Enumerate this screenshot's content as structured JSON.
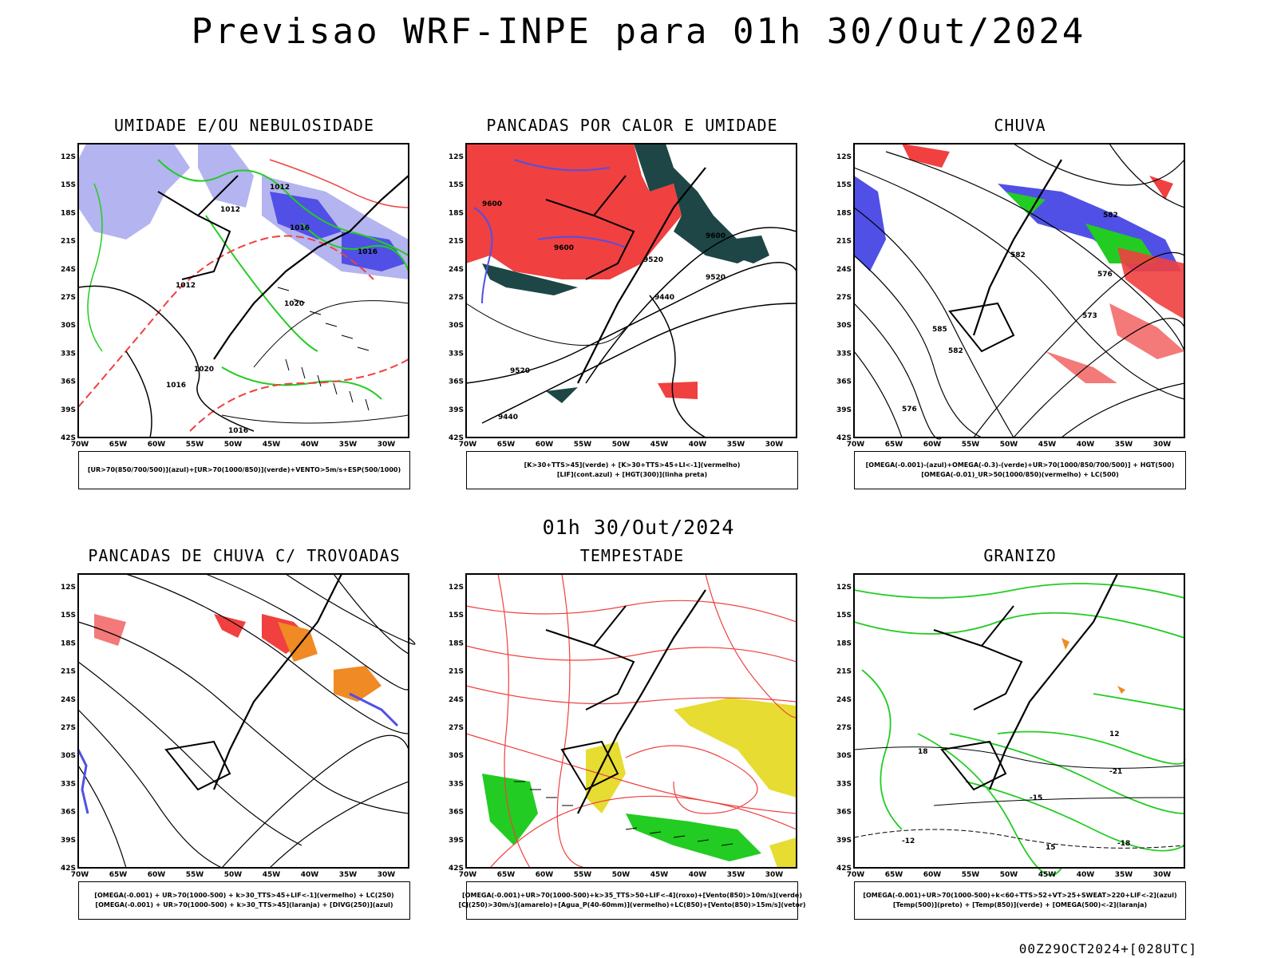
{
  "main_title": "Previsao WRF-INPE  para 01h 30/Out/2024",
  "mid_title": "01h 30/Out/2024",
  "footer": "00Z29OCT2024+[028UTC]",
  "axes": {
    "lat_labels": [
      "12S",
      "15S",
      "18S",
      "21S",
      "24S",
      "27S",
      "30S",
      "33S",
      "36S",
      "39S",
      "42S"
    ],
    "lon_labels": [
      "70W",
      "65W",
      "60W",
      "55W",
      "50W",
      "45W",
      "40W",
      "35W",
      "30W"
    ]
  },
  "panels": [
    {
      "title": "UMIDADE E/OU NEBULOSIDADE",
      "legend": [
        "[UR>70(850/700/500)](azul)+[UR>70(1000/850)](verde)+VENTO>5m/s+ESP(500/1000)"
      ]
    },
    {
      "title": "PANCADAS POR CALOR E UMIDADE",
      "legend": [
        "[K>30+TTS>45](verde)  +  [K>30+TTS>45+LI<-1](vermelho)",
        "[LIF](cont.azul)  +  [HGT(300)](linha preta)"
      ]
    },
    {
      "title": "CHUVA",
      "legend": [
        "[OMEGA(-0.001)-(azul)+OMEGA(-0.3)-(verde)+UR>70(1000/850/700/500)]  +  HGT(500)",
        "[OMEGA(-0.01)_UR>50(1000/850)(vermelho)  +  LC(500)"
      ]
    },
    {
      "title": "PANCADAS DE CHUVA C/ TROVOADAS",
      "legend": [
        "[OMEGA(-0.001)  +  UR>70(1000-500)  +  k>30_TTS>45+LIF<-1](vermelho)  +  LC(250)",
        "[OMEGA(-0.001)  +  UR>70(1000-500)  +  k>30_TTS>45](laranja)  +  [DIVG(250)](azul)"
      ]
    },
    {
      "title": "TEMPESTADE",
      "legend": [
        "[OMEGA(-0.001)+UR>70(1000-500)+k>35_TTS>50+LIF<-4](roxo)+[Vento(850)>10m/s](verde)",
        "[CJ(250)>30m/s](amarelo)+[Agua_P(40-60mm)](vermelho)+LC(850)+[Vento(850)>15m/s](vetor)"
      ]
    },
    {
      "title": "GRANIZO",
      "legend": [
        "[OMEGA(-0.001)+UR>70(1000-500)+k<60+TTS>52+VT>25+SWEAT>220+LIF<-2](azul)",
        "[Temp(500)](preto)  +  [Temp(850)](verde)  +  [OMEGA(500)<-2](laranja)"
      ]
    }
  ],
  "contour_labels": {
    "p1": [
      "1012",
      "1012",
      "1016",
      "1020",
      "1016",
      "1012",
      "1016",
      "1020",
      "1016"
    ],
    "p2": [
      "9600",
      "9600",
      "9520",
      "9520",
      "9440",
      "9520",
      "9440",
      "9600"
    ],
    "p3": [
      "582",
      "576",
      "573",
      "582",
      "585",
      "582",
      "576"
    ],
    "p6": [
      "-12",
      "-15",
      "-18",
      "-21",
      "12",
      "15",
      "18"
    ]
  },
  "colors": {
    "light_blue": "#b4b4f0",
    "blue": "#5050e6",
    "green": "#22cc22",
    "red": "#f04040",
    "dark_teal": "#1e4646",
    "orange": "#f08a24",
    "yellow": "#e6dc32",
    "black": "#000000"
  }
}
